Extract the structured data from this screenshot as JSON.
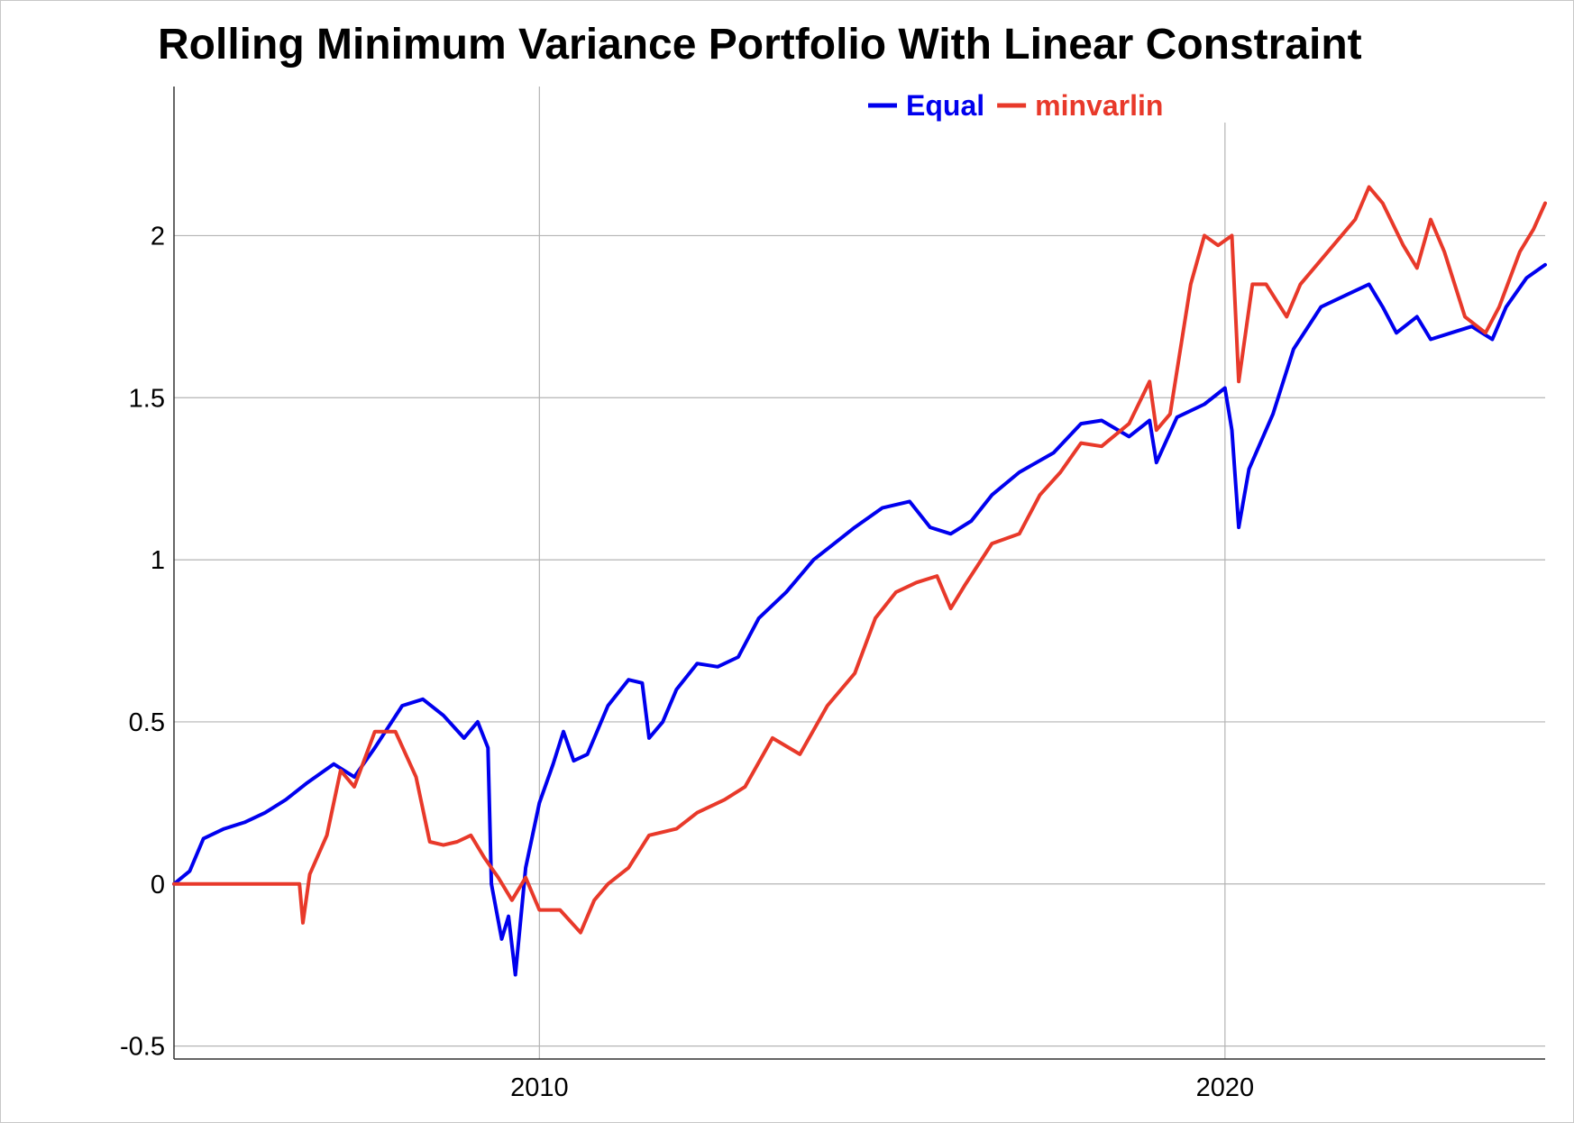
{
  "chart_data": {
    "type": "line",
    "title": "Rolling Minimum Variance Portfolio With Linear Constraint",
    "xlabel": "",
    "ylabel": "",
    "xlim": [
      2004.67,
      2024.67
    ],
    "ylim": [
      -0.54,
      2.46
    ],
    "x_ticks": [
      {
        "value": 2010,
        "label": "2010"
      },
      {
        "value": 2020,
        "label": "2020"
      }
    ],
    "y_ticks": [
      {
        "value": 2,
        "label": "2"
      },
      {
        "value": 1.5,
        "label": "1.5"
      },
      {
        "value": 1,
        "label": "1"
      },
      {
        "value": 0.5,
        "label": "0.5"
      },
      {
        "value": 0,
        "label": "0"
      },
      {
        "value": -0.5,
        "label": "-0.5"
      }
    ],
    "grid": true,
    "legend_position": "top-center",
    "series": [
      {
        "name": "Equal",
        "color": "#0000ee",
        "points": [
          [
            2004.67,
            0.0
          ],
          [
            2004.9,
            0.04
          ],
          [
            2005.1,
            0.14
          ],
          [
            2005.4,
            0.17
          ],
          [
            2005.7,
            0.19
          ],
          [
            2006.0,
            0.22
          ],
          [
            2006.3,
            0.26
          ],
          [
            2006.6,
            0.31
          ],
          [
            2007.0,
            0.37
          ],
          [
            2007.3,
            0.33
          ],
          [
            2007.6,
            0.42
          ],
          [
            2008.0,
            0.55
          ],
          [
            2008.3,
            0.57
          ],
          [
            2008.6,
            0.52
          ],
          [
            2008.9,
            0.45
          ],
          [
            2009.1,
            0.5
          ],
          [
            2009.25,
            0.42
          ],
          [
            2009.3,
            0.0
          ],
          [
            2009.45,
            -0.17
          ],
          [
            2009.55,
            -0.1
          ],
          [
            2009.65,
            -0.28
          ],
          [
            2009.8,
            0.05
          ],
          [
            2010.0,
            0.25
          ],
          [
            2010.2,
            0.37
          ],
          [
            2010.35,
            0.47
          ],
          [
            2010.5,
            0.38
          ],
          [
            2010.7,
            0.4
          ],
          [
            2011.0,
            0.55
          ],
          [
            2011.3,
            0.63
          ],
          [
            2011.5,
            0.62
          ],
          [
            2011.6,
            0.45
          ],
          [
            2011.8,
            0.5
          ],
          [
            2012.0,
            0.6
          ],
          [
            2012.3,
            0.68
          ],
          [
            2012.6,
            0.67
          ],
          [
            2012.9,
            0.7
          ],
          [
            2013.2,
            0.82
          ],
          [
            2013.6,
            0.9
          ],
          [
            2014.0,
            1.0
          ],
          [
            2014.3,
            1.05
          ],
          [
            2014.6,
            1.1
          ],
          [
            2015.0,
            1.16
          ],
          [
            2015.4,
            1.18
          ],
          [
            2015.7,
            1.1
          ],
          [
            2016.0,
            1.08
          ],
          [
            2016.3,
            1.12
          ],
          [
            2016.6,
            1.2
          ],
          [
            2017.0,
            1.27
          ],
          [
            2017.5,
            1.33
          ],
          [
            2017.9,
            1.42
          ],
          [
            2018.2,
            1.43
          ],
          [
            2018.6,
            1.38
          ],
          [
            2018.9,
            1.43
          ],
          [
            2019.0,
            1.3
          ],
          [
            2019.3,
            1.44
          ],
          [
            2019.7,
            1.48
          ],
          [
            2020.0,
            1.53
          ],
          [
            2020.1,
            1.4
          ],
          [
            2020.2,
            1.1
          ],
          [
            2020.35,
            1.28
          ],
          [
            2020.7,
            1.45
          ],
          [
            2021.0,
            1.65
          ],
          [
            2021.4,
            1.78
          ],
          [
            2021.8,
            1.82
          ],
          [
            2022.1,
            1.85
          ],
          [
            2022.3,
            1.78
          ],
          [
            2022.5,
            1.7
          ],
          [
            2022.8,
            1.75
          ],
          [
            2023.0,
            1.68
          ],
          [
            2023.3,
            1.7
          ],
          [
            2023.6,
            1.72
          ],
          [
            2023.9,
            1.68
          ],
          [
            2024.1,
            1.78
          ],
          [
            2024.4,
            1.87
          ],
          [
            2024.67,
            1.91
          ]
        ]
      },
      {
        "name": "minvarlin",
        "color": "#e8392a",
        "points": [
          [
            2004.67,
            0.0
          ],
          [
            2006.5,
            0.0
          ],
          [
            2006.55,
            -0.12
          ],
          [
            2006.65,
            0.03
          ],
          [
            2006.9,
            0.15
          ],
          [
            2007.1,
            0.35
          ],
          [
            2007.3,
            0.3
          ],
          [
            2007.6,
            0.47
          ],
          [
            2007.9,
            0.47
          ],
          [
            2008.2,
            0.33
          ],
          [
            2008.4,
            0.13
          ],
          [
            2008.6,
            0.12
          ],
          [
            2008.8,
            0.13
          ],
          [
            2009.0,
            0.15
          ],
          [
            2009.2,
            0.08
          ],
          [
            2009.4,
            0.02
          ],
          [
            2009.6,
            -0.05
          ],
          [
            2009.8,
            0.02
          ],
          [
            2010.0,
            -0.08
          ],
          [
            2010.3,
            -0.08
          ],
          [
            2010.6,
            -0.15
          ],
          [
            2010.8,
            -0.05
          ],
          [
            2011.0,
            0.0
          ],
          [
            2011.3,
            0.05
          ],
          [
            2011.6,
            0.15
          ],
          [
            2012.0,
            0.17
          ],
          [
            2012.3,
            0.22
          ],
          [
            2012.7,
            0.26
          ],
          [
            2013.0,
            0.3
          ],
          [
            2013.4,
            0.45
          ],
          [
            2013.8,
            0.4
          ],
          [
            2014.2,
            0.55
          ],
          [
            2014.6,
            0.65
          ],
          [
            2014.9,
            0.82
          ],
          [
            2015.2,
            0.9
          ],
          [
            2015.5,
            0.93
          ],
          [
            2015.8,
            0.95
          ],
          [
            2016.0,
            0.85
          ],
          [
            2016.2,
            0.92
          ],
          [
            2016.6,
            1.05
          ],
          [
            2017.0,
            1.08
          ],
          [
            2017.3,
            1.2
          ],
          [
            2017.6,
            1.27
          ],
          [
            2017.9,
            1.36
          ],
          [
            2018.2,
            1.35
          ],
          [
            2018.6,
            1.42
          ],
          [
            2018.9,
            1.55
          ],
          [
            2019.0,
            1.4
          ],
          [
            2019.2,
            1.45
          ],
          [
            2019.5,
            1.85
          ],
          [
            2019.7,
            2.0
          ],
          [
            2019.9,
            1.97
          ],
          [
            2020.1,
            2.0
          ],
          [
            2020.2,
            1.55
          ],
          [
            2020.4,
            1.85
          ],
          [
            2020.6,
            1.85
          ],
          [
            2020.9,
            1.75
          ],
          [
            2021.1,
            1.85
          ],
          [
            2021.5,
            1.95
          ],
          [
            2021.9,
            2.05
          ],
          [
            2022.1,
            2.15
          ],
          [
            2022.3,
            2.1
          ],
          [
            2022.6,
            1.97
          ],
          [
            2022.8,
            1.9
          ],
          [
            2023.0,
            2.05
          ],
          [
            2023.2,
            1.95
          ],
          [
            2023.5,
            1.75
          ],
          [
            2023.8,
            1.7
          ],
          [
            2024.0,
            1.78
          ],
          [
            2024.3,
            1.95
          ],
          [
            2024.5,
            2.02
          ],
          [
            2024.67,
            2.1
          ]
        ]
      }
    ]
  }
}
